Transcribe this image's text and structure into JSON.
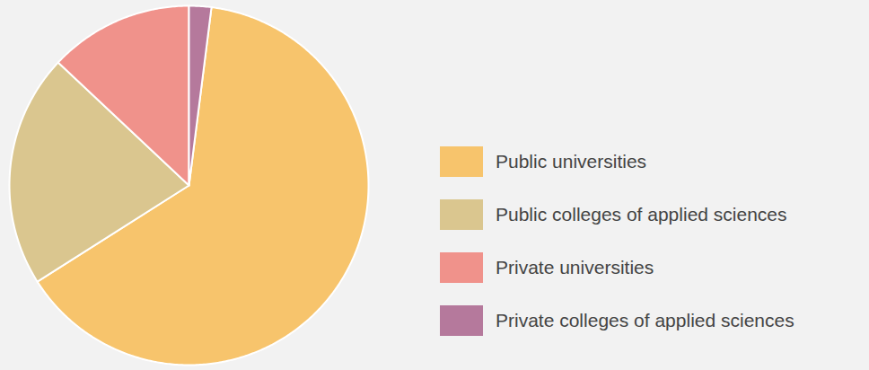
{
  "chart_data": {
    "type": "pie",
    "categories": [
      "Public universities",
      "Public colleges of applied sciences",
      "Private universities",
      "Private colleges of applied sciences"
    ],
    "values": [
      64,
      21,
      13,
      2
    ],
    "colors": [
      "#f7c46c",
      "#dac68f",
      "#f0928b",
      "#b5799c"
    ],
    "legend": "right"
  }
}
